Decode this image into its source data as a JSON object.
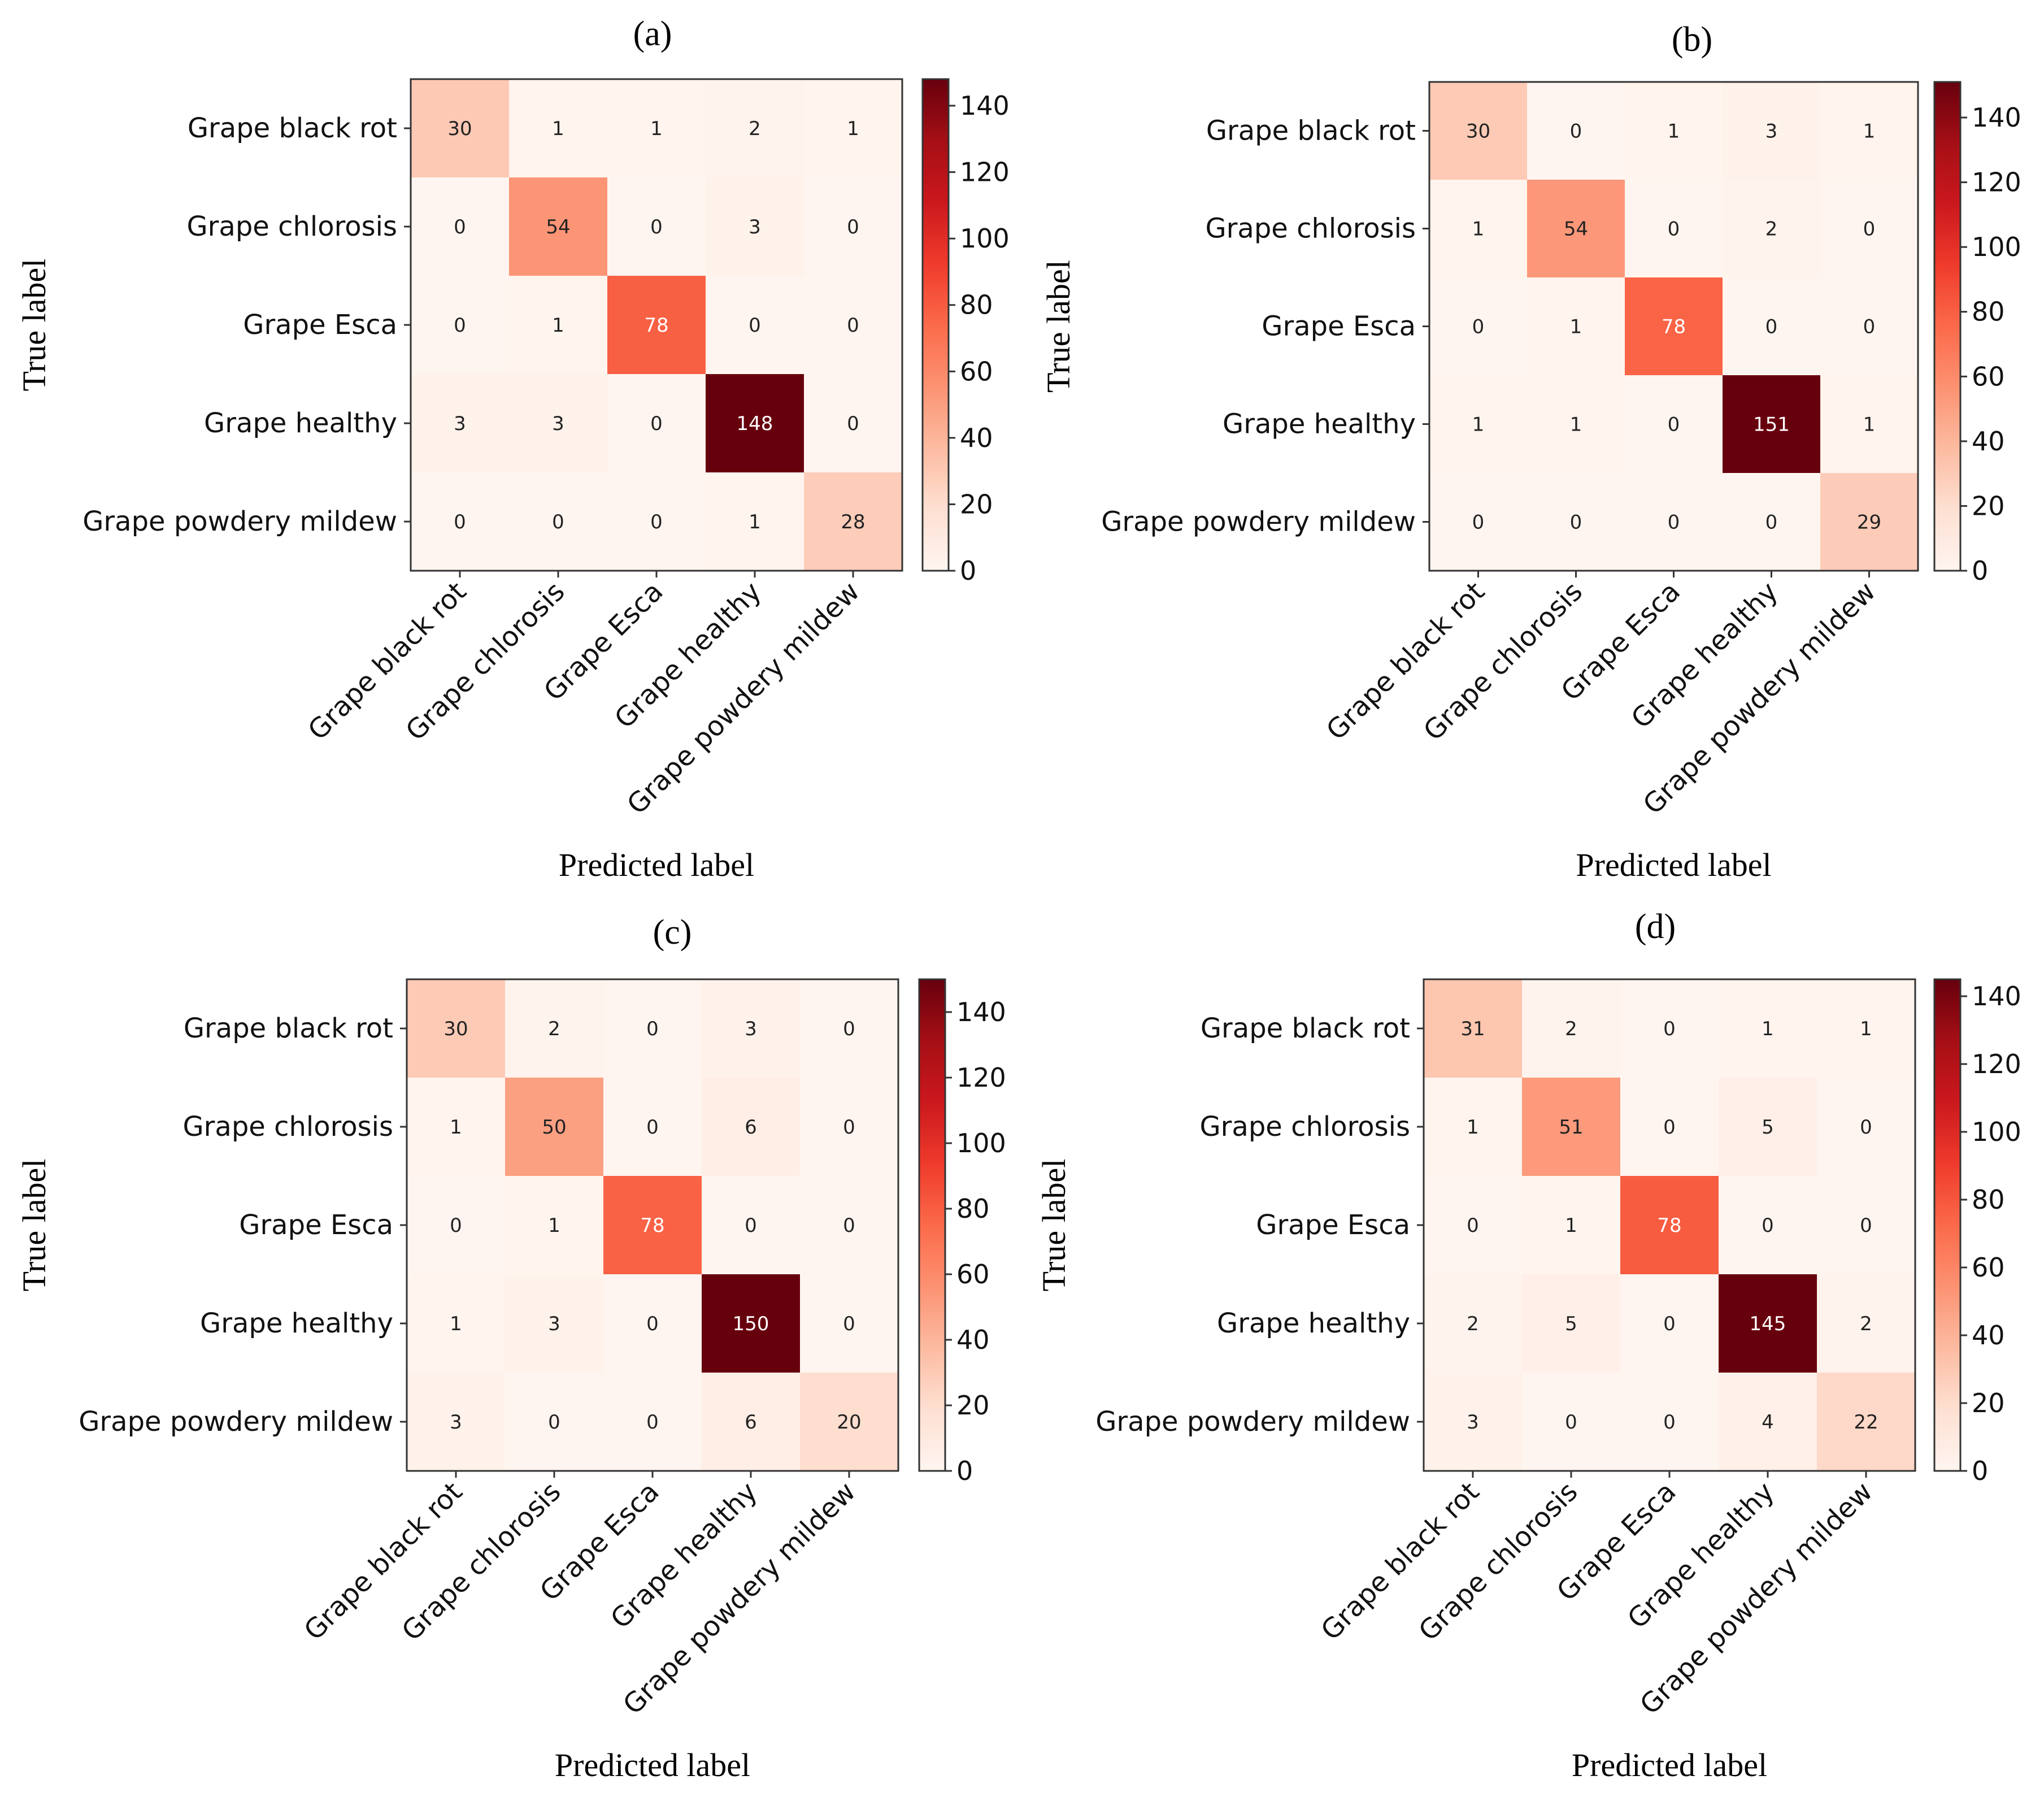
{
  "chart_data": [
    {
      "type": "heatmap",
      "title": "(a)",
      "xlabel": "Predicted label",
      "ylabel": "True label",
      "categories": [
        "Grape black rot",
        "Grape chlorosis",
        "Grape Esca",
        "Grape healthy",
        "Grape powdery mildew"
      ],
      "matrix": [
        [
          30,
          1,
          1,
          2,
          1
        ],
        [
          0,
          54,
          0,
          3,
          0
        ],
        [
          0,
          1,
          78,
          0,
          0
        ],
        [
          3,
          3,
          0,
          148,
          0
        ],
        [
          0,
          0,
          0,
          1,
          28
        ]
      ],
      "colorbar": {
        "min": 0,
        "max": 148,
        "ticks": [
          0,
          20,
          40,
          60,
          80,
          100,
          120,
          140
        ]
      },
      "colormap": "Reds"
    },
    {
      "type": "heatmap",
      "title": "(b)",
      "xlabel": "Predicted label",
      "ylabel": "True label",
      "categories": [
        "Grape black rot",
        "Grape chlorosis",
        "Grape Esca",
        "Grape healthy",
        "Grape powdery mildew"
      ],
      "matrix": [
        [
          30,
          0,
          1,
          3,
          1
        ],
        [
          1,
          54,
          0,
          2,
          0
        ],
        [
          0,
          1,
          78,
          0,
          0
        ],
        [
          1,
          1,
          0,
          151,
          1
        ],
        [
          0,
          0,
          0,
          0,
          29
        ]
      ],
      "colorbar": {
        "min": 0,
        "max": 151,
        "ticks": [
          0,
          20,
          40,
          60,
          80,
          100,
          120,
          140
        ]
      },
      "colormap": "Reds"
    },
    {
      "type": "heatmap",
      "title": "(c)",
      "xlabel": "Predicted label",
      "ylabel": "True label",
      "categories": [
        "Grape black rot",
        "Grape chlorosis",
        "Grape Esca",
        "Grape healthy",
        "Grape powdery mildew"
      ],
      "matrix": [
        [
          30,
          2,
          0,
          3,
          0
        ],
        [
          1,
          50,
          0,
          6,
          0
        ],
        [
          0,
          1,
          78,
          0,
          0
        ],
        [
          1,
          3,
          0,
          150,
          0
        ],
        [
          3,
          0,
          0,
          6,
          20
        ]
      ],
      "colorbar": {
        "min": 0,
        "max": 150,
        "ticks": [
          0,
          20,
          40,
          60,
          80,
          100,
          120,
          140
        ]
      },
      "colormap": "Reds"
    },
    {
      "type": "heatmap",
      "title": "(d)",
      "xlabel": "Predicted label",
      "ylabel": "True label",
      "categories": [
        "Grape black rot",
        "Grape chlorosis",
        "Grape Esca",
        "Grape healthy",
        "Grape powdery mildew"
      ],
      "matrix": [
        [
          31,
          2,
          0,
          1,
          1
        ],
        [
          1,
          51,
          0,
          5,
          0
        ],
        [
          0,
          1,
          78,
          0,
          0
        ],
        [
          2,
          5,
          0,
          145,
          2
        ],
        [
          3,
          0,
          0,
          4,
          22
        ]
      ],
      "colorbar": {
        "min": 0,
        "max": 145,
        "ticks": [
          0,
          20,
          40,
          60,
          80,
          100,
          120,
          140
        ]
      },
      "colormap": "Reds"
    }
  ]
}
